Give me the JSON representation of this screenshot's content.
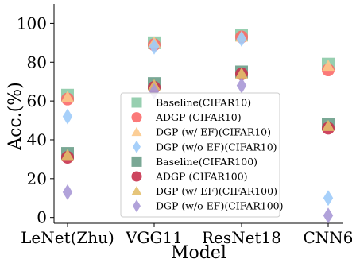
{
  "chart_data": {
    "type": "scatter",
    "xlabel": "Model",
    "ylabel": "Acc.(%)",
    "categories": [
      "LeNet(Zhu)",
      "VGG11",
      "ResNet18",
      "CNN6"
    ],
    "ylim": [
      -3,
      110
    ],
    "yticks": [
      0,
      20,
      40,
      60,
      80,
      100
    ],
    "grid": false,
    "legend_position": "center",
    "series": [
      {
        "name": "Baseline(CIFAR10)",
        "marker": "square",
        "color": "#8ccaa7",
        "values": [
          63,
          90,
          94,
          79
        ]
      },
      {
        "name": "ADGP (CIFAR10)",
        "marker": "circle",
        "color": "#fb6a6a",
        "values": [
          61,
          89,
          93,
          76
        ]
      },
      {
        "name": "DGP (w/ EF)(CIFAR10)",
        "marker": "triangle",
        "color": "#fcc98b",
        "values": [
          62,
          90,
          93,
          78
        ]
      },
      {
        "name": "DGP (w/o EF)(CIFAR10)",
        "marker": "diamond",
        "color": "#9dcbfa",
        "values": [
          52,
          88,
          92,
          10
        ]
      },
      {
        "name": "Baseline(CIFAR100)",
        "marker": "square",
        "color": "#6b9e8a",
        "values": [
          33,
          69,
          75,
          48
        ]
      },
      {
        "name": "ADGP (CIFAR100)",
        "marker": "circle",
        "color": "#c8324e",
        "values": [
          31,
          67,
          74,
          46
        ]
      },
      {
        "name": "DGP (w/ EF)(CIFAR100)",
        "marker": "triangle",
        "color": "#e3bf6b",
        "values": [
          32,
          68,
          74,
          47
        ]
      },
      {
        "name": "DGP (w/o EF)(CIFAR100)",
        "marker": "diamond",
        "color": "#a898d6",
        "values": [
          13,
          65,
          68,
          1
        ]
      }
    ]
  }
}
